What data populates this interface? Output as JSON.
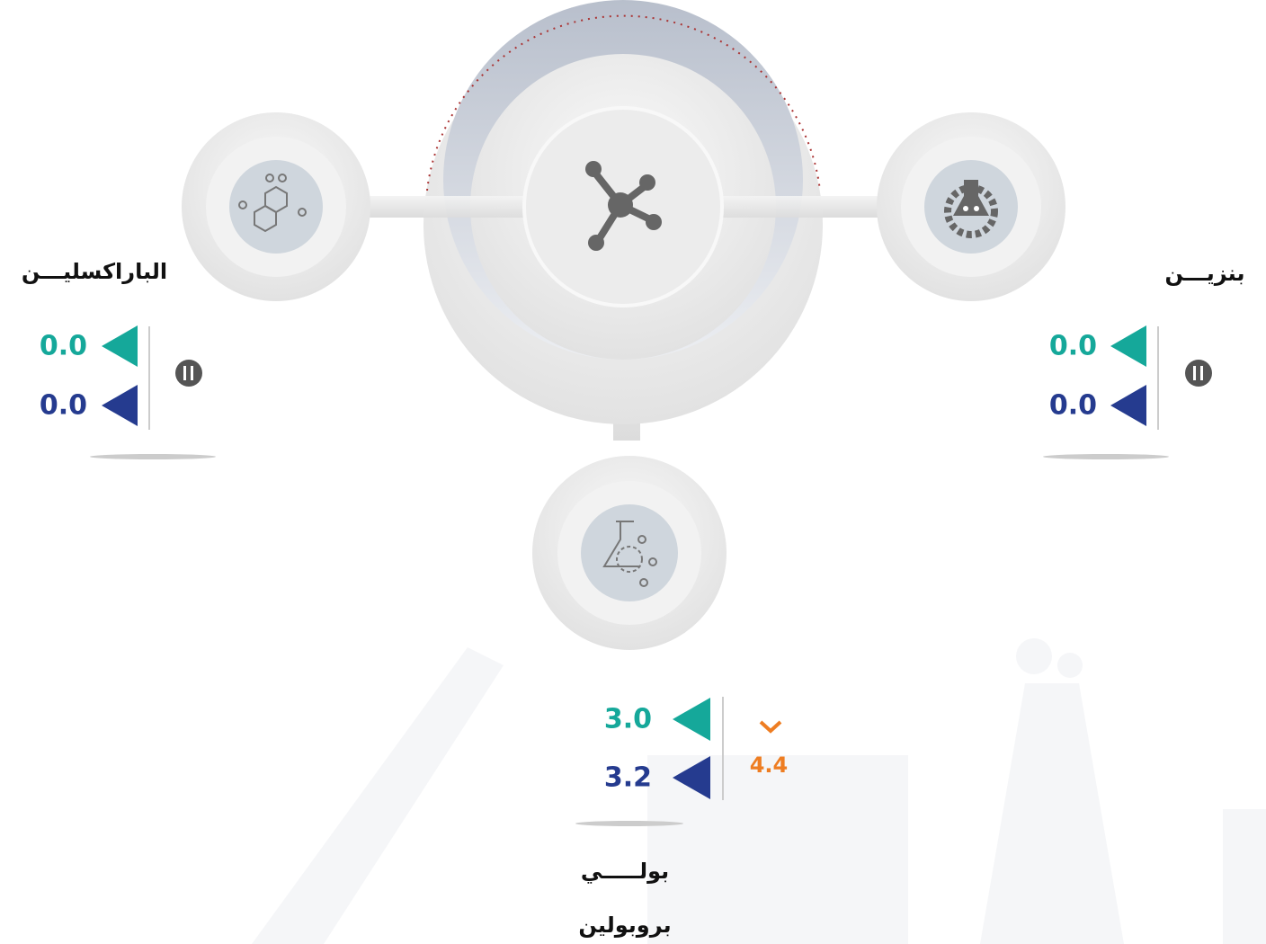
{
  "nodes": [
    {
      "label": "الباراكسليـــن",
      "values": [
        "0.0",
        "0.0"
      ]
    },
    {
      "label": "بنزيـــن",
      "values": [
        "0.0",
        "0.0"
      ]
    },
    {
      "label_lines": [
        "بولـــــي",
        "بروبولين"
      ],
      "values": [
        "3.0",
        "3.2"
      ],
      "change": "4.4"
    }
  ]
}
